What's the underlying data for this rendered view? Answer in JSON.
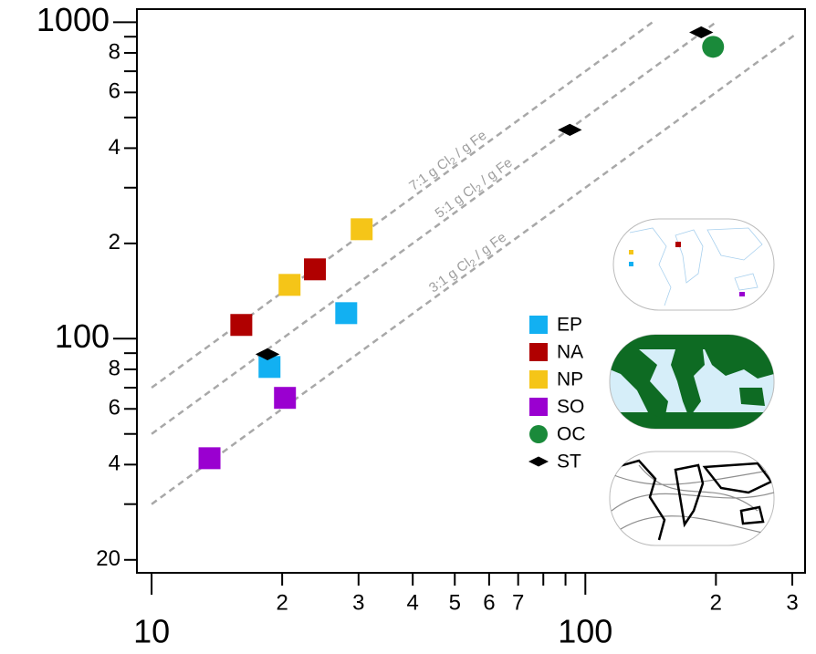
{
  "chart_data": {
    "type": "scatter",
    "xlog": true,
    "ylog": true,
    "xlim": [
      9.25,
      321
    ],
    "ylim": [
      18.2,
      1100
    ],
    "xticks": [
      10,
      {
        "value": 20,
        "label": "2"
      },
      {
        "value": 30,
        "label": "3"
      },
      {
        "value": 40,
        "label": "4"
      },
      {
        "value": 50,
        "label": "5"
      },
      {
        "value": 60,
        "label": "6"
      },
      {
        "value": 70,
        "label": "7"
      },
      100,
      {
        "value": 200,
        "label": "2"
      },
      {
        "value": 300,
        "label": "3"
      }
    ],
    "x_minor_ticks": [
      80,
      90
    ],
    "yticks": [
      20,
      {
        "value": 40,
        "label": "4"
      },
      {
        "value": 60,
        "label": "6"
      },
      {
        "value": 80,
        "label": "8"
      },
      100,
      {
        "value": 200,
        "label": "2"
      },
      {
        "value": 400,
        "label": "4"
      },
      {
        "value": 600,
        "label": "6"
      },
      {
        "value": 800,
        "label": "8"
      },
      1000
    ],
    "y_minor_ticks": [
      30,
      50,
      70,
      90,
      300,
      500,
      700,
      900
    ],
    "ratio_lines": [
      {
        "label": "7:1 g Cl",
        "label_sub": "2",
        "label_end": " / g Fe",
        "slope": 7,
        "x": [
          10,
          144
        ]
      },
      {
        "label": "5:1 g Cl",
        "label_sub": "2",
        "label_end": " / g Fe",
        "slope": 5,
        "x": [
          10,
          200
        ]
      },
      {
        "label": "3:1 g Cl",
        "label_sub": "2",
        "label_end": " / g Fe",
        "slope": 3,
        "x": [
          10,
          303
        ]
      }
    ],
    "series": [
      {
        "name": "EP",
        "color": "#12b0f2",
        "marker": "square",
        "x": [
          18.7,
          28.1
        ],
        "values": [
          81.4,
          120.4
        ]
      },
      {
        "name": "NA",
        "color": "#b00000",
        "marker": "square",
        "x": [
          16.1,
          23.8
        ],
        "values": [
          110.5,
          165.6
        ]
      },
      {
        "name": "NP",
        "color": "#f5c518",
        "marker": "square",
        "x": [
          20.8,
          30.5
        ],
        "values": [
          147.9,
          221.7
        ]
      },
      {
        "name": "SO",
        "color": "#9a00d0",
        "marker": "square",
        "x": [
          13.6,
          20.3
        ],
        "values": [
          41.9,
          65.0
        ]
      },
      {
        "name": "OC",
        "color": "#1a8a3a",
        "marker": "circle",
        "x": [
          197
        ],
        "values": [
          836
        ]
      },
      {
        "name": "ST",
        "color": "#000000",
        "marker": "diamond",
        "x": [
          18.5,
          92.1,
          185
        ],
        "values": [
          89.3,
          457,
          929
        ]
      }
    ]
  }
}
